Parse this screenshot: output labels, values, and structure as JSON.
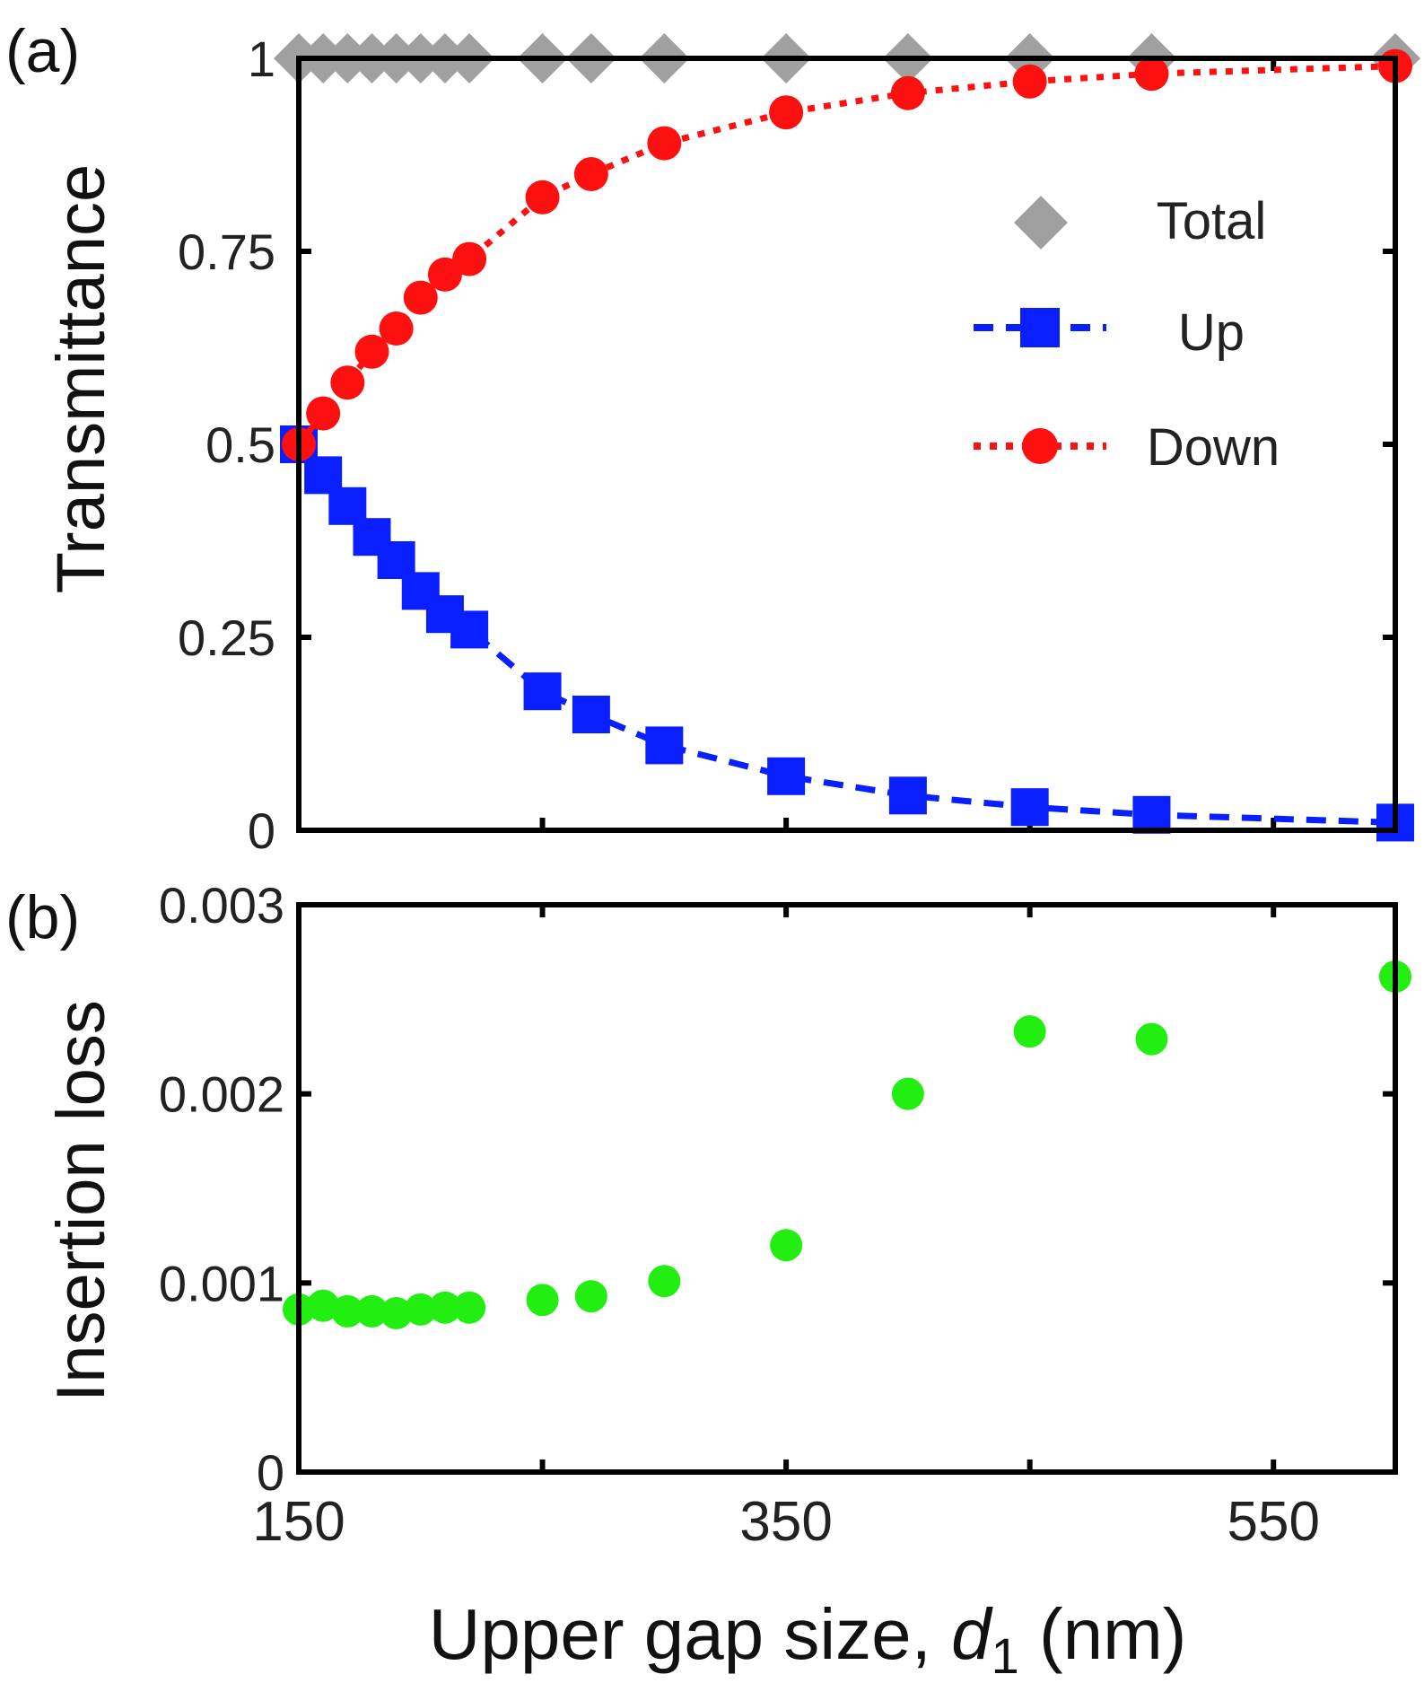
{
  "chart_data": [
    {
      "panel": "(a)",
      "type": "line",
      "xlabel_prefix": "Upper gap size, ",
      "xlabel_var": "d",
      "xlabel_sub": "1",
      "xlabel_suffix": " (nm)",
      "ylabel": "Transmittance",
      "xlim": [
        150,
        600
      ],
      "ylim": [
        0,
        1
      ],
      "yticks": [
        0,
        0.25,
        0.5,
        0.75,
        1
      ],
      "ytick_labels": [
        "0",
        "0.25",
        "0.5",
        "0.75",
        "1"
      ],
      "x": [
        150,
        160,
        170,
        180,
        190,
        200,
        210,
        220,
        250,
        270,
        300,
        350,
        400,
        450,
        500,
        600
      ],
      "series": [
        {
          "name": "Total",
          "color": "#a0a0a0",
          "marker": "diamond",
          "line": "none",
          "values": [
            1,
            1,
            1,
            1,
            1,
            1,
            1,
            1,
            1,
            1,
            1,
            1,
            1,
            1,
            1,
            1
          ]
        },
        {
          "name": "Up",
          "color": "#0a1fff",
          "marker": "square",
          "line": "dashed",
          "values": [
            0.5,
            0.46,
            0.42,
            0.38,
            0.35,
            0.31,
            0.28,
            0.26,
            0.18,
            0.15,
            0.11,
            0.07,
            0.045,
            0.03,
            0.02,
            0.01
          ]
        },
        {
          "name": "Down",
          "color": "#ff1010",
          "marker": "circle",
          "line": "dotted",
          "values": [
            0.5,
            0.54,
            0.58,
            0.62,
            0.65,
            0.69,
            0.72,
            0.74,
            0.82,
            0.85,
            0.89,
            0.93,
            0.955,
            0.97,
            0.98,
            0.99
          ]
        }
      ],
      "legend": {
        "position": "top-right",
        "entries": [
          "Total",
          "Up",
          "Down"
        ]
      }
    },
    {
      "panel": "(b)",
      "type": "scatter",
      "ylabel": "Insertion loss",
      "xlim": [
        150,
        600
      ],
      "ylim": [
        0,
        0.003
      ],
      "yticks": [
        0,
        0.001,
        0.002,
        0.003
      ],
      "ytick_labels": [
        "0",
        "0.001",
        "0.002",
        "0.003"
      ],
      "xticks": [
        150,
        350,
        550
      ],
      "xtick_labels": [
        "150",
        "350",
        "550"
      ],
      "series": [
        {
          "name": "Insertion loss",
          "color": "#22ee11",
          "marker": "circle",
          "x": [
            150,
            160,
            170,
            180,
            190,
            200,
            210,
            220,
            250,
            270,
            300,
            350,
            400,
            450,
            500,
            600
          ],
          "values": [
            0.00086,
            0.00088,
            0.00085,
            0.00085,
            0.00084,
            0.00086,
            0.00087,
            0.00087,
            0.00091,
            0.00093,
            0.00101,
            0.0012,
            0.002,
            0.00233,
            0.00229,
            0.00262
          ]
        }
      ]
    }
  ]
}
